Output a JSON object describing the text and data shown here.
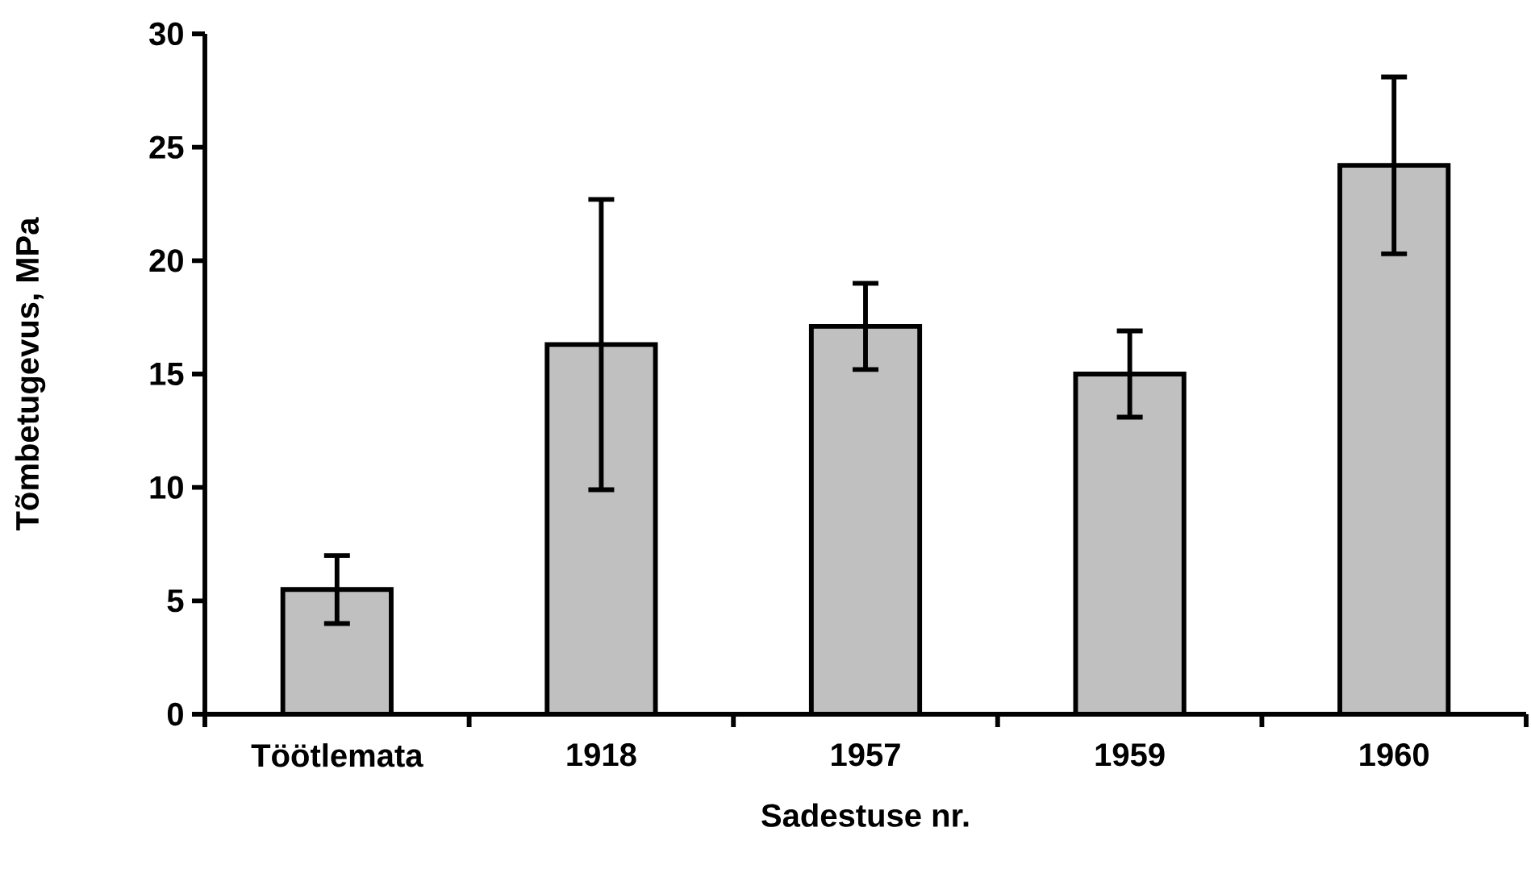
{
  "chart_data": {
    "type": "bar",
    "xlabel": "Sadestuse nr.",
    "ylabel": "Tõmbetugevus, MPa",
    "categories": [
      "Töötlemata",
      "1918",
      "1957",
      "1959",
      "1960"
    ],
    "values": [
      5.5,
      16.3,
      17.1,
      15.0,
      24.2
    ],
    "errors": [
      1.5,
      6.4,
      1.9,
      1.9,
      3.9
    ],
    "color": "#c0c0c0",
    "ylim": [
      0,
      30
    ],
    "yticks": [
      0,
      5,
      10,
      15,
      20,
      25,
      30
    ],
    "grid": false
  }
}
